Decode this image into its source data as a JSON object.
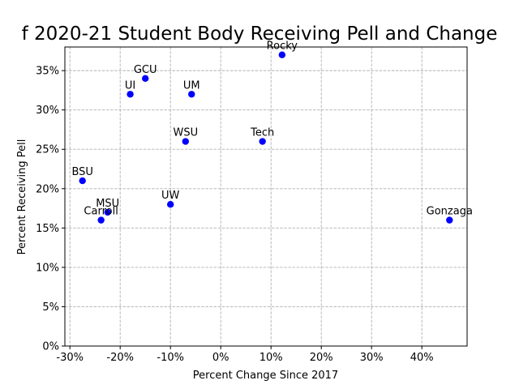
{
  "chart_data": {
    "type": "scatter",
    "title": "f 2020-21 Student Body Receiving Pell and Change",
    "xlabel": "Percent Change Since 2017",
    "ylabel": "Percent Receiving Pell",
    "xlim": [
      -31,
      49
    ],
    "ylim": [
      0,
      38
    ],
    "x_ticks": [
      -30,
      -20,
      -10,
      0,
      10,
      20,
      30,
      40
    ],
    "x_tick_labels": [
      "-30%",
      "-20%",
      "-10%",
      "0%",
      "10%",
      "20%",
      "30%",
      "40%"
    ],
    "y_ticks": [
      0,
      5,
      10,
      15,
      20,
      25,
      30,
      35
    ],
    "y_tick_labels": [
      "0%",
      "5%",
      "10%",
      "15%",
      "20%",
      "25%",
      "30%",
      "35%"
    ],
    "grid": true,
    "grid_style": "dashed",
    "marker_color": "#0000ff",
    "points": [
      {
        "label": "Rocky",
        "x": 12.2,
        "y": 37
      },
      {
        "label": "GCU",
        "x": -15.0,
        "y": 34
      },
      {
        "label": "UI",
        "x": -18.0,
        "y": 32
      },
      {
        "label": "UM",
        "x": -5.8,
        "y": 32
      },
      {
        "label": "WSU",
        "x": -7.0,
        "y": 26
      },
      {
        "label": "Tech",
        "x": 8.3,
        "y": 26
      },
      {
        "label": "BSU",
        "x": -27.5,
        "y": 21
      },
      {
        "label": "UW",
        "x": -10.0,
        "y": 18
      },
      {
        "label": "MSU",
        "x": -22.5,
        "y": 17
      },
      {
        "label": "Carroll",
        "x": -23.8,
        "y": 16
      },
      {
        "label": "Gonzaga",
        "x": 45.5,
        "y": 16
      }
    ]
  }
}
